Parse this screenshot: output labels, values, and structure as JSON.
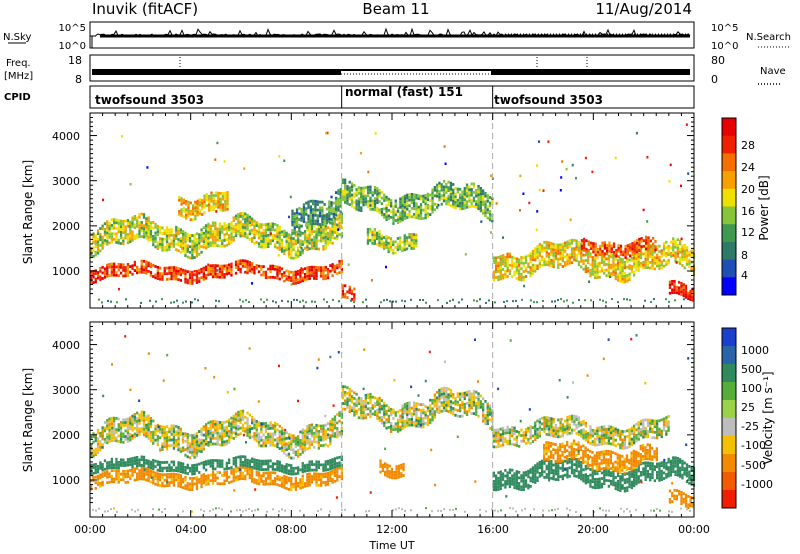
{
  "header": {
    "station": "Inuvik (fitACF)",
    "beam": "Beam 11",
    "date": "11/Aug/2014"
  },
  "noise_panel": {
    "left_label": "N.Sky",
    "right_label": "N.Search",
    "left_ticks": [
      "10^5",
      "10^0"
    ],
    "right_ticks": [
      "10^5",
      "10^0"
    ]
  },
  "freq_panel": {
    "left_label_1": "Freq.",
    "left_label_2": "[MHz]",
    "right_label": "Nave",
    "left_ticks": [
      "18",
      "8"
    ],
    "right_ticks": [
      "80",
      "0"
    ]
  },
  "cpid_panel": {
    "label": "CPID",
    "segments": [
      {
        "name": "twofsound 3503",
        "start_hour": 0,
        "end_hour": 10
      },
      {
        "name": "normal (fast) 151",
        "start_hour": 10,
        "end_hour": 16
      },
      {
        "name": "twofsound 3503",
        "start_hour": 16,
        "end_hour": 24
      }
    ]
  },
  "time_axis": {
    "label": "Time UT",
    "ticks": [
      "00:00",
      "04:00",
      "08:00",
      "12:00",
      "16:00",
      "20:00",
      "00:00"
    ],
    "range_hours": [
      0,
      24
    ]
  },
  "range_axis": {
    "label": "Slant Range [km]",
    "ticks": [
      "1000",
      "2000",
      "3000",
      "4000"
    ],
    "range_km": [
      180,
      4500
    ]
  },
  "power_colorbar": {
    "label": "Power [dB]",
    "ticks": [
      "4",
      "8",
      "12",
      "16",
      "20",
      "24",
      "28"
    ],
    "colors": [
      "#0000ff",
      "#1f4fb4",
      "#2f7a66",
      "#3f9a4f",
      "#86c43a",
      "#f0e000",
      "#f7a000",
      "#f56f00",
      "#ef2000",
      "#e60000"
    ]
  },
  "velocity_colorbar": {
    "label": "Velocity [m s⁻¹]",
    "ticks": [
      "1000",
      "500",
      "100",
      "25",
      "-25",
      "-100",
      "-500",
      "-1000"
    ],
    "colors": [
      "#1a3fcc",
      "#2a64a8",
      "#2f8a5e",
      "#56ad3a",
      "#9ad24a",
      "#bdbdbd",
      "#f3c000",
      "#f28a00",
      "#f25a00",
      "#f01e00"
    ]
  },
  "chart_data": [
    {
      "type": "heatmap",
      "title": "Power",
      "xlabel": "Time UT",
      "ylabel": "Slant Range [km]",
      "xlim_hours": [
        0,
        24
      ],
      "ylim_km": [
        180,
        4500
      ],
      "colorbar_label": "Power [dB]",
      "colorbar_range_db": [
        0,
        30
      ],
      "bands": [
        {
          "start_hour": 0.0,
          "end_hour": 10.0,
          "center_km": 950,
          "width_km": 260,
          "level_db": 25
        },
        {
          "start_hour": 0.0,
          "end_hour": 10.0,
          "center_km": 1750,
          "width_km": 500,
          "level_db": 15
        },
        {
          "start_hour": 3.5,
          "end_hour": 5.5,
          "center_km": 2500,
          "width_km": 400,
          "level_db": 18
        },
        {
          "start_hour": 8.0,
          "end_hour": 10.0,
          "center_km": 2300,
          "width_km": 500,
          "level_db": 10
        },
        {
          "start_hour": 10.0,
          "end_hour": 16.0,
          "center_km": 2500,
          "width_km": 500,
          "level_db": 12
        },
        {
          "start_hour": 11.0,
          "end_hour": 13.0,
          "center_km": 1700,
          "width_km": 350,
          "level_db": 14
        },
        {
          "start_hour": 10.0,
          "end_hour": 10.5,
          "center_km": 400,
          "width_km": 300,
          "level_db": 26
        },
        {
          "start_hour": 16.0,
          "end_hour": 24.0,
          "center_km": 1200,
          "width_km": 500,
          "level_db": 17
        },
        {
          "start_hour": 19.5,
          "end_hour": 22.5,
          "center_km": 1550,
          "width_km": 300,
          "level_db": 24
        },
        {
          "start_hour": 23.0,
          "end_hour": 24.0,
          "center_km": 500,
          "width_km": 300,
          "level_db": 27
        }
      ]
    },
    {
      "type": "heatmap",
      "title": "Velocity",
      "xlabel": "Time UT",
      "ylabel": "Slant Range [km]",
      "xlim_hours": [
        0,
        24
      ],
      "ylim_km": [
        180,
        4500
      ],
      "colorbar_label": "Velocity [m s⁻¹]",
      "colorbar_range_ms": [
        -1000,
        1000
      ],
      "bands": [
        {
          "start_hour": 0.0,
          "end_hour": 10.0,
          "center_km": 1000,
          "width_km": 250,
          "velocity_ms": -200
        },
        {
          "start_hour": 0.0,
          "end_hour": 10.0,
          "center_km": 1300,
          "width_km": 200,
          "velocity_ms": 300
        },
        {
          "start_hour": 0.0,
          "end_hour": 10.0,
          "center_km": 2000,
          "width_km": 550,
          "velocity_ms": 0
        },
        {
          "start_hour": 10.0,
          "end_hour": 16.0,
          "center_km": 2550,
          "width_km": 550,
          "velocity_ms": 0
        },
        {
          "start_hour": 11.5,
          "end_hour": 12.5,
          "center_km": 1300,
          "width_km": 300,
          "velocity_ms": -300
        },
        {
          "start_hour": 16.0,
          "end_hour": 24.0,
          "center_km": 1100,
          "width_km": 400,
          "velocity_ms": 300
        },
        {
          "start_hour": 18.0,
          "end_hour": 22.5,
          "center_km": 1500,
          "width_km": 400,
          "velocity_ms": -200
        },
        {
          "start_hour": 16.0,
          "end_hour": 23.0,
          "center_km": 2050,
          "width_km": 400,
          "velocity_ms": 0
        },
        {
          "start_hour": 23.0,
          "end_hour": 24.0,
          "center_km": 500,
          "width_km": 300,
          "velocity_ms": -300
        }
      ]
    }
  ]
}
